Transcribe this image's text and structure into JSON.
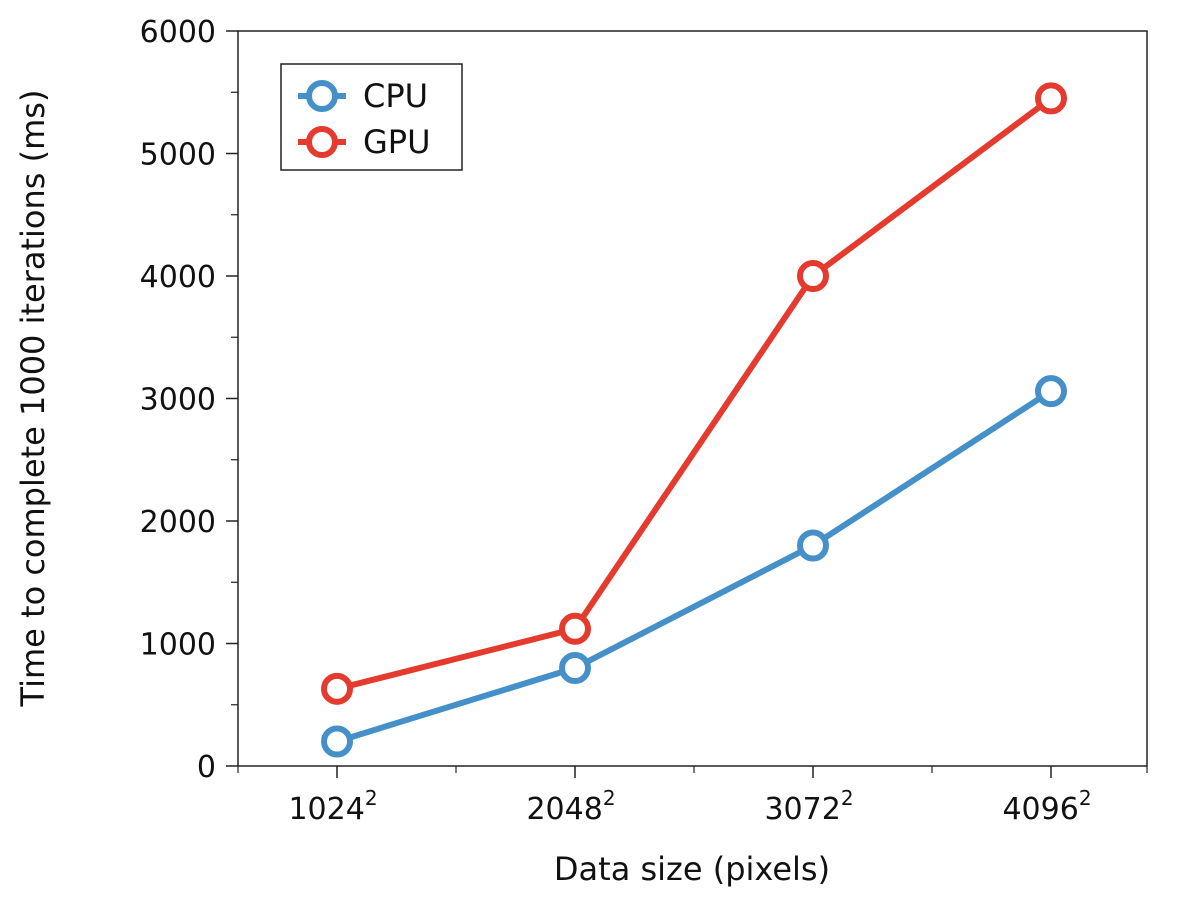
{
  "chart_data": {
    "type": "line",
    "title": "",
    "xlabel": "Data size (pixels)",
    "ylabel": "Time to complete 1000 iterations (ms)",
    "categories": [
      {
        "base": "1024",
        "exp": "2"
      },
      {
        "base": "2048",
        "exp": "2"
      },
      {
        "base": "3072",
        "exp": "2"
      },
      {
        "base": "4096",
        "exp": "2"
      }
    ],
    "ylim": [
      0,
      6000
    ],
    "yticks": [
      "0",
      "1000",
      "2000",
      "3000",
      "4000",
      "5000",
      "6000"
    ],
    "y_minor_step": 500,
    "grid": false,
    "legend": {
      "position": "top-left"
    },
    "series": [
      {
        "name": "CPU",
        "color": "#4590C8",
        "values": [
          200,
          800,
          1800,
          3060
        ]
      },
      {
        "name": "GPU",
        "color": "#E53A2E",
        "values": [
          630,
          1120,
          4000,
          5450
        ]
      }
    ]
  }
}
